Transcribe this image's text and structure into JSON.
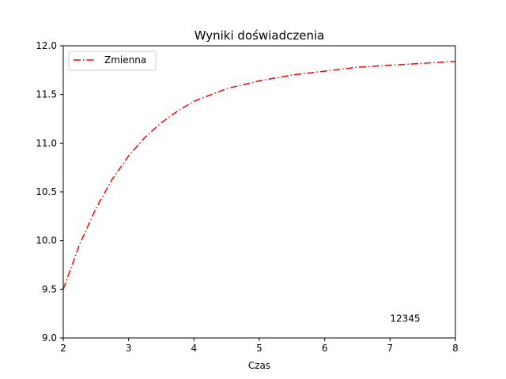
{
  "chart_data": {
    "type": "line",
    "title": "Wyniki doświadczenia",
    "xlabel": "Czas",
    "ylabel": "",
    "xlim": [
      2,
      8
    ],
    "ylim": [
      9.0,
      12.0
    ],
    "x_ticks": [
      "2",
      "3",
      "4",
      "5",
      "6",
      "7",
      "8"
    ],
    "y_ticks": [
      "9.0",
      "9.5",
      "10.0",
      "10.5",
      "11.0",
      "11.5",
      "12.0"
    ],
    "grid": false,
    "legend_position": "top-left",
    "annotation": {
      "text": "12345",
      "x": 7.0,
      "y": 9.2
    },
    "series": [
      {
        "name": "Zmienna",
        "color": "#ff0000",
        "line_style": "dash-dot",
        "x": [
          2.0,
          2.25,
          2.5,
          2.75,
          3.0,
          3.25,
          3.5,
          3.75,
          4.0,
          4.5,
          5.0,
          5.5,
          6.0,
          6.5,
          7.0,
          7.5,
          8.0
        ],
        "y": [
          9.5,
          9.96,
          10.33,
          10.63,
          10.87,
          11.06,
          11.21,
          11.33,
          11.43,
          11.56,
          11.64,
          11.7,
          11.74,
          11.78,
          11.8,
          11.82,
          11.84
        ]
      }
    ]
  }
}
